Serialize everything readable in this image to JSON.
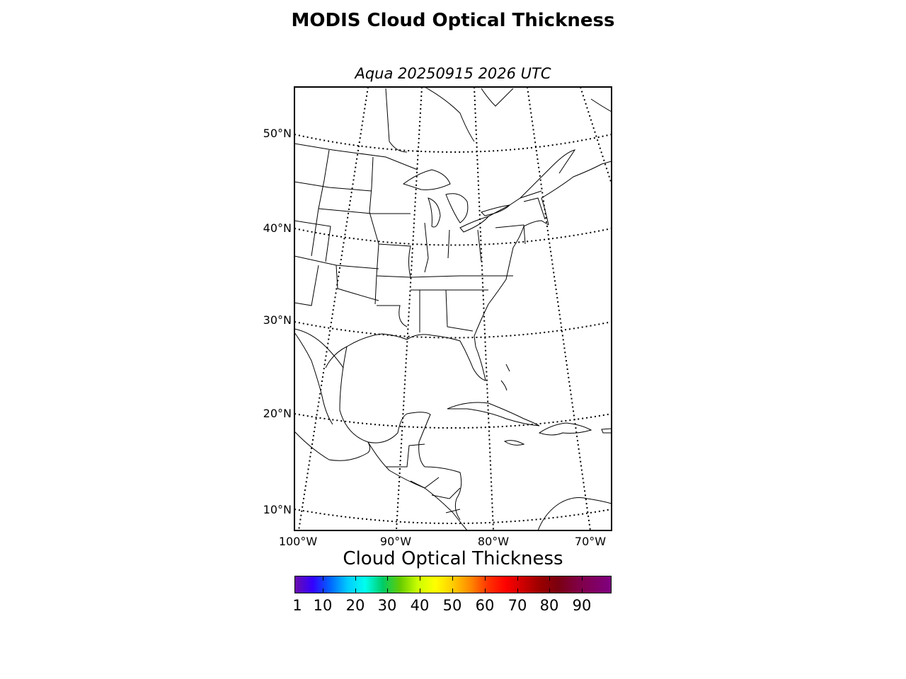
{
  "title": "MODIS Cloud Optical Thickness",
  "subtitle": "Aqua 20250915 2026 UTC",
  "map": {
    "projection": "lambert-conformal",
    "extent": {
      "lon_min": -100,
      "lon_max": -67,
      "lat_min": 8,
      "lat_max": 55
    },
    "lat_labels": [
      "50°N",
      "40°N",
      "30°N",
      "20°N",
      "10°N"
    ],
    "lon_labels": [
      "100°W",
      "90°W",
      "80°W",
      "70°W"
    ],
    "features": [
      "coastlines",
      "country-borders",
      "state-borders"
    ],
    "graticule": "dotted",
    "line_color": "#000000"
  },
  "colorbar": {
    "label": "Cloud Optical Thickness",
    "ticks": [
      "1",
      "10",
      "20",
      "30",
      "40",
      "50",
      "60",
      "70",
      "80",
      "90"
    ],
    "range": [
      0,
      100
    ],
    "colors": [
      "#6a0dad",
      "#3300ff",
      "#0066ff",
      "#00ccff",
      "#00ffee",
      "#00cc66",
      "#66cc00",
      "#ccff00",
      "#ffff00",
      "#ffcc00",
      "#ff8800",
      "#ff3300",
      "#ff0000",
      "#cc0000",
      "#990000",
      "#7a0010",
      "#800040",
      "#800060",
      "#800080"
    ]
  }
}
